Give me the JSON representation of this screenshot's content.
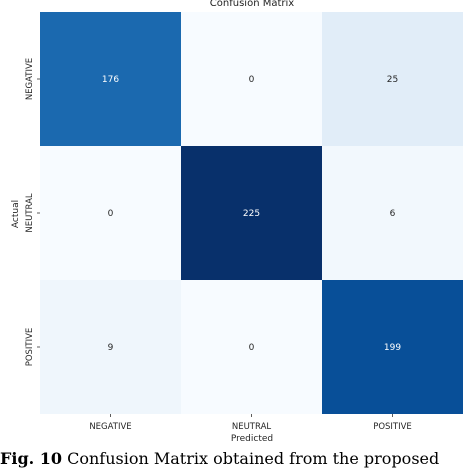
{
  "chart_data": {
    "type": "heatmap",
    "title": "Confusion Matrix",
    "xlabel": "Predicted",
    "ylabel": "Actual",
    "x_categories": [
      "NEGATIVE",
      "NEUTRAL",
      "POSITIVE"
    ],
    "y_categories": [
      "NEGATIVE",
      "NEUTRAL",
      "POSITIVE"
    ],
    "values": [
      [
        176,
        0,
        25
      ],
      [
        0,
        225,
        6
      ],
      [
        9,
        0,
        199
      ]
    ],
    "colormap": "Blues",
    "colorbar": false
  },
  "caption": {
    "label": "Fig. 10",
    "text": " Confusion Matrix obtained from the proposed"
  }
}
